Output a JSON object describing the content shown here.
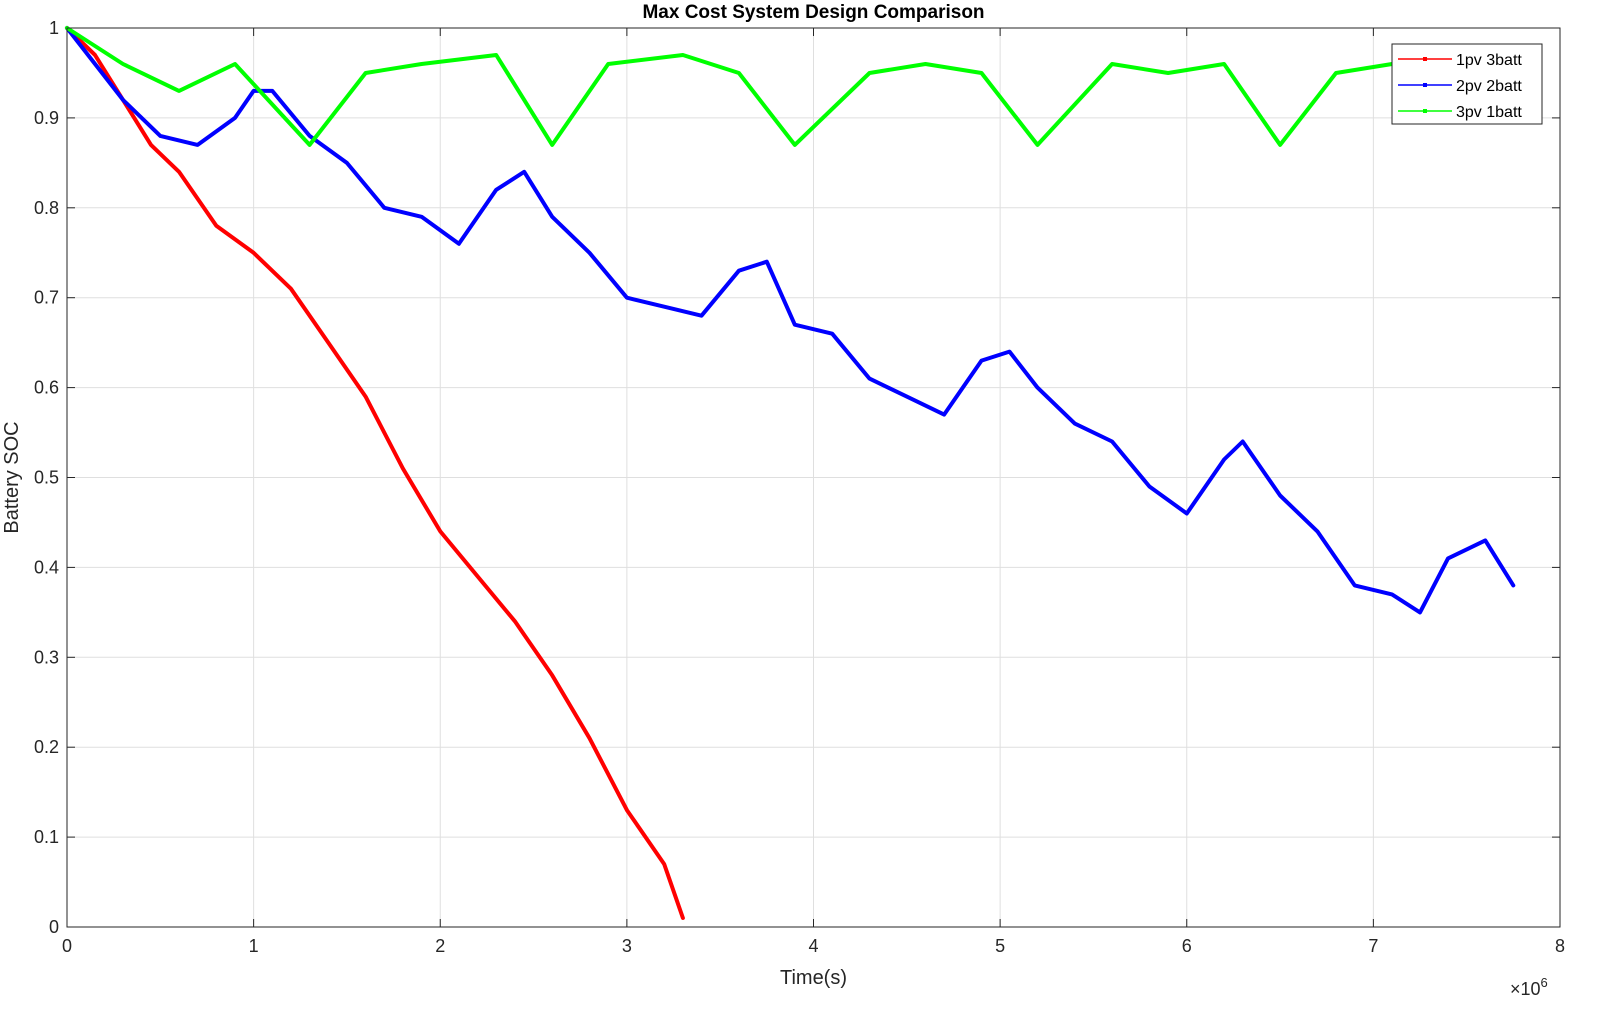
{
  "chart_data": {
    "type": "line",
    "title": "Max Cost System Design Comparison",
    "xlabel": "Time(s)",
    "ylabel": "Battery SOC",
    "x_exponent_label": "×10",
    "x_exponent_power": "6",
    "xlim": [
      0,
      8
    ],
    "ylim": [
      0,
      1
    ],
    "x_ticks": [
      "0",
      "1",
      "2",
      "3",
      "4",
      "5",
      "6",
      "7",
      "8"
    ],
    "y_ticks": [
      "0",
      "0.1",
      "0.2",
      "0.3",
      "0.4",
      "0.5",
      "0.6",
      "0.7",
      "0.8",
      "0.9",
      "1"
    ],
    "grid": true,
    "legend_position": "top-right",
    "series": [
      {
        "name": "1pv 3batt",
        "color": "#ff0000",
        "x": [
          0,
          0.15,
          0.3,
          0.45,
          0.6,
          0.8,
          1.0,
          1.2,
          1.4,
          1.6,
          1.8,
          2.0,
          2.2,
          2.4,
          2.6,
          2.8,
          3.0,
          3.2,
          3.3
        ],
        "y": [
          1.0,
          0.97,
          0.92,
          0.87,
          0.84,
          0.78,
          0.75,
          0.71,
          0.65,
          0.59,
          0.51,
          0.44,
          0.39,
          0.34,
          0.28,
          0.21,
          0.13,
          0.07,
          0.01
        ]
      },
      {
        "name": "2pv 2batt",
        "color": "#0000ff",
        "x": [
          0,
          0.3,
          0.5,
          0.7,
          0.9,
          1.0,
          1.1,
          1.3,
          1.5,
          1.7,
          1.9,
          2.1,
          2.3,
          2.45,
          2.6,
          2.8,
          3.0,
          3.2,
          3.4,
          3.6,
          3.75,
          3.9,
          4.1,
          4.3,
          4.5,
          4.7,
          4.9,
          5.05,
          5.2,
          5.4,
          5.6,
          5.8,
          6.0,
          6.2,
          6.3,
          6.5,
          6.7,
          6.9,
          7.1,
          7.25,
          7.4,
          7.6,
          7.75
        ],
        "y": [
          1.0,
          0.92,
          0.88,
          0.87,
          0.9,
          0.93,
          0.93,
          0.88,
          0.85,
          0.8,
          0.79,
          0.76,
          0.82,
          0.84,
          0.79,
          0.75,
          0.7,
          0.69,
          0.68,
          0.73,
          0.74,
          0.67,
          0.66,
          0.61,
          0.59,
          0.57,
          0.63,
          0.64,
          0.6,
          0.56,
          0.54,
          0.49,
          0.46,
          0.52,
          0.54,
          0.48,
          0.44,
          0.38,
          0.37,
          0.35,
          0.41,
          0.43,
          0.38
        ]
      },
      {
        "name": "3pv 1batt",
        "color": "#00ff00",
        "x": [
          0,
          0.3,
          0.6,
          0.9,
          1.3,
          1.6,
          1.9,
          2.3,
          2.6,
          2.9,
          3.3,
          3.6,
          3.9,
          4.3,
          4.6,
          4.9,
          5.2,
          5.6,
          5.9,
          6.2,
          6.5,
          6.8,
          7.1,
          7.4,
          7.7
        ],
        "y": [
          1.0,
          0.96,
          0.93,
          0.96,
          0.87,
          0.95,
          0.96,
          0.97,
          0.87,
          0.96,
          0.97,
          0.95,
          0.87,
          0.95,
          0.96,
          0.95,
          0.87,
          0.96,
          0.95,
          0.96,
          0.87,
          0.95,
          0.96,
          0.95,
          0.96
        ]
      }
    ]
  }
}
